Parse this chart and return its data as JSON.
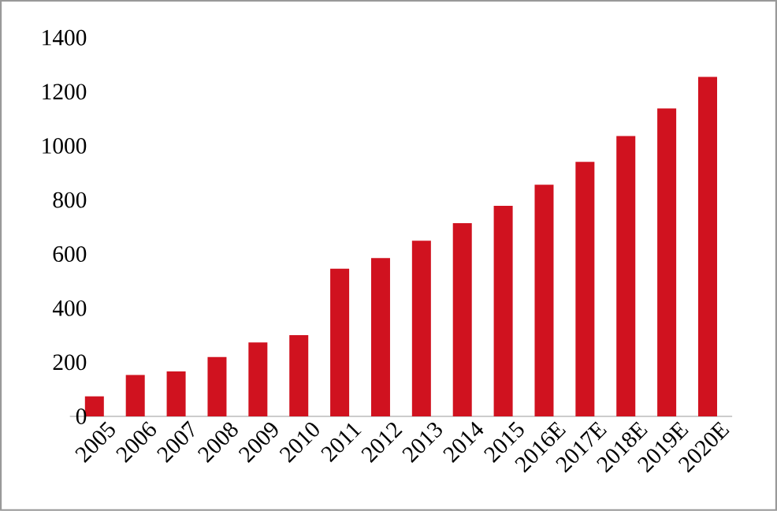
{
  "chart_data": {
    "type": "bar",
    "categories": [
      "2005",
      "2006",
      "2007",
      "2008",
      "2009",
      "2010",
      "2011",
      "2012",
      "2013",
      "2014",
      "2015",
      "2016E",
      "2017E",
      "2018E",
      "2019E",
      "2020E"
    ],
    "values": [
      74,
      153,
      166,
      219,
      273,
      300,
      546,
      585,
      649,
      714,
      778,
      856,
      941,
      1036,
      1138,
      1255
    ],
    "color": "#d0121f",
    "ylim": [
      0,
      1400
    ],
    "yticks": [
      0,
      200,
      400,
      600,
      800,
      1000,
      1200,
      1400
    ]
  }
}
